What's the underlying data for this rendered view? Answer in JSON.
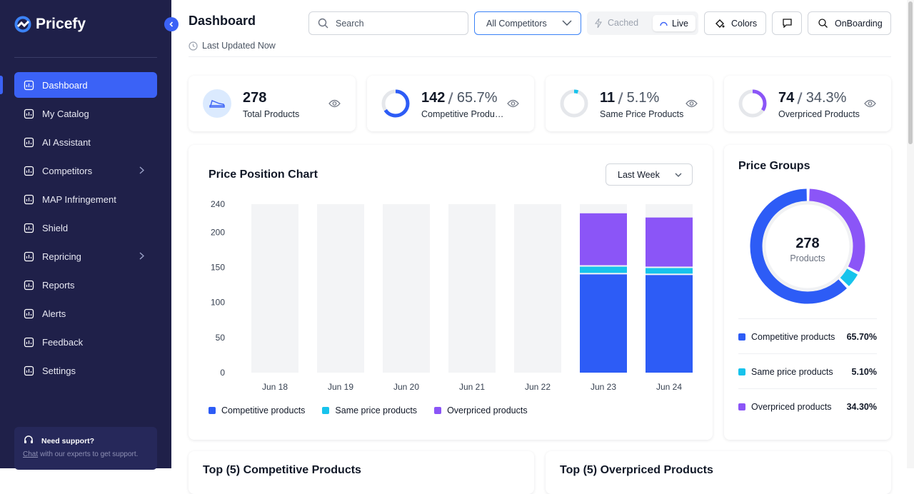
{
  "brand": "Pricefy",
  "active_nav": 0,
  "nav": [
    {
      "label": "Dashboard",
      "expandable": false
    },
    {
      "label": "My Catalog",
      "expandable": false
    },
    {
      "label": "AI Assistant",
      "expandable": false
    },
    {
      "label": "Competitors",
      "expandable": true
    },
    {
      "label": "MAP Infringement",
      "expandable": false
    },
    {
      "label": "Shield",
      "expandable": false
    },
    {
      "label": "Repricing",
      "expandable": true
    },
    {
      "label": "Reports",
      "expandable": false
    },
    {
      "label": "Alerts",
      "expandable": false
    },
    {
      "label": "Feedback",
      "expandable": false
    },
    {
      "label": "Settings",
      "expandable": false
    }
  ],
  "support": {
    "title": "Need support?",
    "link": "Chat",
    "text": "with our experts to get support."
  },
  "header": {
    "title": "Dashboard",
    "updated": "Last Updated Now",
    "search_placeholder": "Search",
    "competitor_filter": "All Competitors",
    "modes": [
      "Cached",
      "Live"
    ],
    "active_mode": 1,
    "colors_button": "Colors",
    "onboarding_button": "OnBoarding"
  },
  "kpis": [
    {
      "value": 278,
      "label": "Total Products"
    },
    {
      "value": 142,
      "percent": "65.7%",
      "label": "Competitive Products",
      "color": "#2d5cf6"
    },
    {
      "value": 11,
      "percent": "5.1%",
      "label": "Same Price Products",
      "color": "#17c3ec"
    },
    {
      "value": 74,
      "percent": "34.3%",
      "label": "Overpriced Products",
      "color": "#8b55f7"
    }
  ],
  "price_position_chart": {
    "type": "bar",
    "stacked": true,
    "title": "Price Position Chart",
    "period": "Last Week",
    "categories": [
      "Jun 18",
      "Jun 19",
      "Jun 20",
      "Jun 21",
      "Jun 22",
      "Jun 23",
      "Jun 24"
    ],
    "series": [
      {
        "name": "Competitive products",
        "color": "#2d5cf6",
        "values": [
          0,
          0,
          0,
          0,
          0,
          140,
          139
        ]
      },
      {
        "name": "Same price products",
        "color": "#17c3ec",
        "values": [
          0,
          0,
          0,
          0,
          0,
          11,
          10
        ]
      },
      {
        "name": "Overpriced products",
        "color": "#8b55f7",
        "values": [
          0,
          0,
          0,
          0,
          0,
          76,
          72
        ]
      }
    ],
    "ylim": [
      0,
      240
    ],
    "yticks": [
      0,
      50,
      100,
      150,
      200,
      240
    ]
  },
  "price_groups": {
    "type": "donut",
    "title": "Price Groups",
    "total": 278,
    "total_label": "Products",
    "categories": [
      "Competitive products",
      "Same price products",
      "Overpriced products"
    ],
    "values": [
      65.7,
      5.1,
      34.3
    ],
    "value_labels": [
      "65.70%",
      "5.10%",
      "34.30%"
    ],
    "colors": [
      "#2d5cf6",
      "#17c3ec",
      "#8b55f7"
    ]
  },
  "sections": [
    "Top (5) Competitive Products",
    "Top (5) Overpriced Products"
  ]
}
